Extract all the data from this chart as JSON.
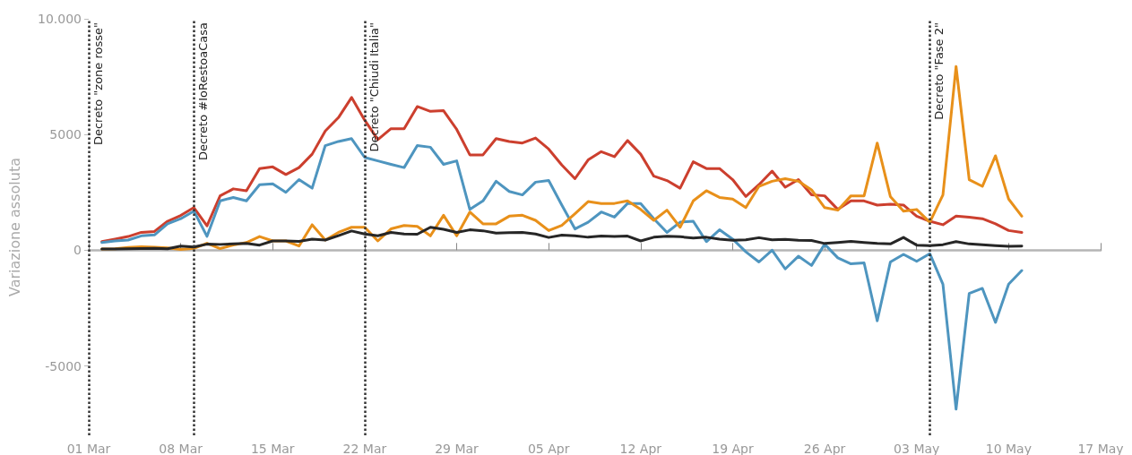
{
  "chart_data": {
    "type": "line",
    "ylabel": "Variazione assoluta",
    "x": [
      "--03-02",
      "--03-03",
      "--03-04",
      "--03-05",
      "--03-06",
      "--03-07",
      "--03-08",
      "--03-09",
      "--03-10",
      "--03-11",
      "--03-12",
      "--03-13",
      "--03-14",
      "--03-15",
      "--03-16",
      "--03-17",
      "--03-18",
      "--03-19",
      "--03-20",
      "--03-21",
      "--03-22",
      "--03-23",
      "--03-24",
      "--03-25",
      "--03-26",
      "--03-27",
      "--03-28",
      "--03-29",
      "--03-30",
      "--03-31",
      "--04-01",
      "--04-02",
      "--04-03",
      "--04-04",
      "--04-05",
      "--04-06",
      "--04-07",
      "--04-08",
      "--04-09",
      "--04-10",
      "--04-11",
      "--04-12",
      "--04-13",
      "--04-14",
      "--04-15",
      "--04-16",
      "--04-17",
      "--04-18",
      "--04-19",
      "--04-20",
      "--04-21",
      "--04-22",
      "--04-23",
      "--04-24",
      "--04-25",
      "--04-26",
      "--04-27",
      "--04-28",
      "--04-29",
      "--04-30",
      "--05-01",
      "--05-02",
      "--05-03",
      "--05-04",
      "--05-05",
      "--05-06",
      "--05-07",
      "--05-08",
      "--05-09",
      "--05-10",
      "--05-11"
    ],
    "series": [
      {
        "color": "#cc3f2e",
        "values": [
          370,
          480,
          590,
          770,
          810,
          1250,
          1500,
          1840,
          1050,
          2350,
          2650,
          2570,
          3530,
          3600,
          3270,
          3570,
          4150,
          5150,
          5730,
          6600,
          5620,
          4780,
          5250,
          5250,
          6210,
          6000,
          6030,
          5220,
          4120,
          4120,
          4820,
          4700,
          4630,
          4850,
          4370,
          3680,
          3090,
          3900,
          4260,
          4040,
          4740,
          4150,
          3200,
          3010,
          2680,
          3820,
          3530,
          3530,
          3050,
          2320,
          2830,
          3420,
          2720,
          3050,
          2390,
          2350,
          1760,
          2130,
          2130,
          1950,
          1990,
          1950,
          1470,
          1250,
          1100,
          1470,
          1430,
          1360,
          1140,
          850,
          770
        ]
      },
      {
        "color": "#4e95bf",
        "values": [
          330,
          400,
          440,
          620,
          660,
          1140,
          1360,
          1690,
          600,
          2130,
          2280,
          2130,
          2830,
          2870,
          2500,
          3050,
          2680,
          4520,
          4700,
          4820,
          4010,
          3860,
          3710,
          3570,
          4520,
          4450,
          3710,
          3860,
          1760,
          2130,
          2980,
          2540,
          2390,
          2940,
          3010,
          1950,
          920,
          1210,
          1650,
          1430,
          2020,
          2020,
          1360,
          770,
          1210,
          1250,
          370,
          880,
          480,
          -70,
          -510,
          0,
          -810,
          -260,
          -660,
          260,
          -330,
          -590,
          -550,
          -3050,
          -510,
          -180,
          -480,
          -150,
          -1470,
          -6870,
          -1870,
          -1650,
          -3120,
          -1470,
          -880
        ]
      },
      {
        "color": "#e8901a",
        "values": [
          50,
          60,
          120,
          150,
          130,
          100,
          30,
          80,
          300,
          70,
          220,
          330,
          590,
          400,
          400,
          180,
          1100,
          440,
          770,
          990,
          990,
          400,
          920,
          1070,
          1030,
          620,
          1510,
          620,
          1650,
          1140,
          1140,
          1470,
          1510,
          1290,
          850,
          1070,
          1580,
          2100,
          2020,
          2020,
          2130,
          1760,
          1290,
          1730,
          990,
          2130,
          2570,
          2280,
          2210,
          1840,
          2760,
          2980,
          3090,
          2980,
          2610,
          1840,
          1730,
          2350,
          2350,
          4630,
          2320,
          1690,
          1760,
          1210,
          2390,
          7940,
          3050,
          2760,
          4080,
          2210,
          1470
        ]
      },
      {
        "color": "#262626",
        "values": [
          50,
          50,
          60,
          70,
          80,
          60,
          180,
          140,
          260,
          250,
          270,
          290,
          220,
          400,
          400,
          380,
          480,
          440,
          630,
          830,
          700,
          620,
          770,
          700,
          690,
          990,
          900,
          770,
          880,
          840,
          740,
          760,
          770,
          700,
          550,
          650,
          620,
          560,
          610,
          590,
          610,
          400,
          560,
          600,
          580,
          530,
          560,
          480,
          430,
          450,
          540,
          450,
          470,
          430,
          420,
          290,
          330,
          380,
          330,
          290,
          270,
          550,
          220,
          200,
          240,
          370,
          270,
          240,
          200,
          170,
          180
        ]
      }
    ],
    "xlim": [
      "--03-01",
      "--05-17"
    ],
    "xticks": [
      {
        "value": "--03-01",
        "label": "01 Mar"
      },
      {
        "value": "--03-08",
        "label": "08 Mar"
      },
      {
        "value": "--03-15",
        "label": "15 Mar"
      },
      {
        "value": "--03-22",
        "label": "22 Mar"
      },
      {
        "value": "--03-29",
        "label": "29 Mar"
      },
      {
        "value": "--04-05",
        "label": "05 Apr"
      },
      {
        "value": "--04-12",
        "label": "12 Apr"
      },
      {
        "value": "--04-19",
        "label": "19 Apr"
      },
      {
        "value": "--04-26",
        "label": "26 Apr"
      },
      {
        "value": "--05-03",
        "label": "03 May"
      },
      {
        "value": "--05-10",
        "label": "10 May"
      },
      {
        "value": "--05-17",
        "label": "17 May"
      }
    ],
    "ylim": [
      -8000,
      10000
    ],
    "yticks": [
      -5000,
      0,
      5000,
      {
        "value": 10000,
        "label": "10.000"
      }
    ],
    "grid": false,
    "line_style": "solid",
    "ref_lines": [
      {
        "axis": "x",
        "value": "--03-01",
        "label": "Decreto \"zone rosse\"",
        "color": "#333333",
        "line_style": "dotted"
      },
      {
        "axis": "x",
        "value": "--03-09",
        "label": "Decreto #IoRestoaCasa",
        "color": "#333333",
        "line_style": "dotted"
      },
      {
        "axis": "x",
        "value": "--03-22",
        "label": "Decreto \"Chiudi Italia\"",
        "color": "#333333",
        "line_style": "dotted"
      },
      {
        "axis": "x",
        "value": "--05-04",
        "label": "Decreto \"Fase 2\"",
        "color": "#333333",
        "line_style": "dotted"
      }
    ]
  }
}
